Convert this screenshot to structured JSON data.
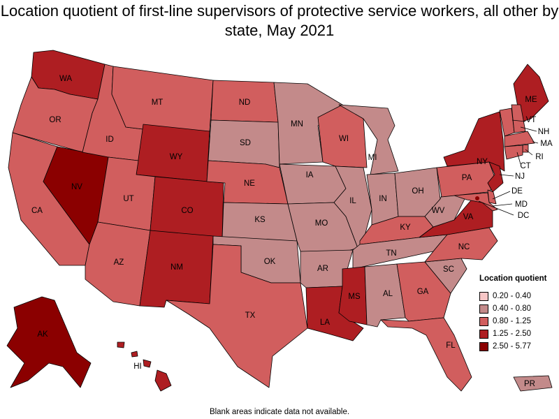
{
  "title": "Location quotient of first-line supervisors of protective service workers, all other by state, May 2021",
  "footnote": "Blank areas indicate data not available.",
  "legend": {
    "title": "Location quotient",
    "items": [
      {
        "label": "0.20 - 0.40",
        "color": "#f7c6c6"
      },
      {
        "label": "0.40 - 0.80",
        "color": "#c38a8a"
      },
      {
        "label": "0.80 - 1.25",
        "color": "#d15e5e"
      },
      {
        "label": "1.25 - 2.50",
        "color": "#ae1e22"
      },
      {
        "label": "2.50 - 5.77",
        "color": "#8b0000"
      }
    ]
  },
  "states": {
    "WA": {
      "label": "WA",
      "class": "1.25 - 2.50"
    },
    "OR": {
      "label": "OR",
      "class": "0.80 - 1.25"
    },
    "CA": {
      "label": "CA",
      "class": "0.80 - 1.25"
    },
    "ID": {
      "label": "ID",
      "class": "0.80 - 1.25"
    },
    "NV": {
      "label": "NV",
      "class": "2.50 - 5.77"
    },
    "MT": {
      "label": "MT",
      "class": "0.80 - 1.25"
    },
    "WY": {
      "label": "WY",
      "class": "1.25 - 2.50"
    },
    "UT": {
      "label": "UT",
      "class": "0.80 - 1.25"
    },
    "AZ": {
      "label": "AZ",
      "class": "0.80 - 1.25"
    },
    "CO": {
      "label": "CO",
      "class": "1.25 - 2.50"
    },
    "NM": {
      "label": "NM",
      "class": "1.25 - 2.50"
    },
    "ND": {
      "label": "ND",
      "class": "0.80 - 1.25"
    },
    "SD": {
      "label": "SD",
      "class": "0.40 - 0.80"
    },
    "NE": {
      "label": "NE",
      "class": "0.80 - 1.25"
    },
    "KS": {
      "label": "KS",
      "class": "0.40 - 0.80"
    },
    "OK": {
      "label": "OK",
      "class": "0.40 - 0.80"
    },
    "TX": {
      "label": "TX",
      "class": "0.80 - 1.25"
    },
    "MN": {
      "label": "MN",
      "class": "0.40 - 0.80"
    },
    "IA": {
      "label": "IA",
      "class": "0.40 - 0.80"
    },
    "MO": {
      "label": "MO",
      "class": "0.40 - 0.80"
    },
    "AR": {
      "label": "AR",
      "class": "0.40 - 0.80"
    },
    "LA": {
      "label": "LA",
      "class": "1.25 - 2.50"
    },
    "WI": {
      "label": "WI",
      "class": "0.80 - 1.25"
    },
    "IL": {
      "label": "IL",
      "class": "0.40 - 0.80"
    },
    "MI": {
      "label": "MI",
      "class": "0.40 - 0.80"
    },
    "IN": {
      "label": "IN",
      "class": "0.40 - 0.80"
    },
    "OH": {
      "label": "OH",
      "class": "0.40 - 0.80"
    },
    "KY": {
      "label": "KY",
      "class": "0.80 - 1.25"
    },
    "TN": {
      "label": "TN",
      "class": "0.40 - 0.80"
    },
    "MS": {
      "label": "MS",
      "class": "1.25 - 2.50"
    },
    "AL": {
      "label": "AL",
      "class": "0.40 - 0.80"
    },
    "GA": {
      "label": "GA",
      "class": "0.80 - 1.25"
    },
    "FL": {
      "label": "FL",
      "class": "0.80 - 1.25"
    },
    "SC": {
      "label": "SC",
      "class": "0.40 - 0.80"
    },
    "NC": {
      "label": "NC",
      "class": "0.80 - 1.25"
    },
    "VA": {
      "label": "VA",
      "class": "1.25 - 2.50"
    },
    "WV": {
      "label": "WV",
      "class": "0.40 - 0.80"
    },
    "PA": {
      "label": "PA",
      "class": "0.80 - 1.25"
    },
    "NY": {
      "label": "NY",
      "class": "1.25 - 2.50"
    },
    "ME": {
      "label": "ME",
      "class": "1.25 - 2.50"
    },
    "VT": {
      "label": "VT",
      "class": "0.80 - 1.25"
    },
    "NH": {
      "label": "NH",
      "class": "0.80 - 1.25"
    },
    "MA": {
      "label": "MA",
      "class": "0.80 - 1.25"
    },
    "RI": {
      "label": "RI",
      "class": "0.80 - 1.25"
    },
    "CT": {
      "label": "CT",
      "class": "0.80 - 1.25"
    },
    "NJ": {
      "label": "NJ",
      "class": "1.25 - 2.50"
    },
    "DE": {
      "label": "DE",
      "class": "0.80 - 1.25"
    },
    "MD": {
      "label": "MD",
      "class": "0.80 - 1.25"
    },
    "DC": {
      "label": "DC",
      "class": "2.50 - 5.77"
    },
    "AK": {
      "label": "AK",
      "class": "2.50 - 5.77"
    },
    "HI": {
      "label": "HI",
      "class": "1.25 - 2.50"
    },
    "PR": {
      "label": "PR",
      "class": "0.40 - 0.80"
    }
  }
}
